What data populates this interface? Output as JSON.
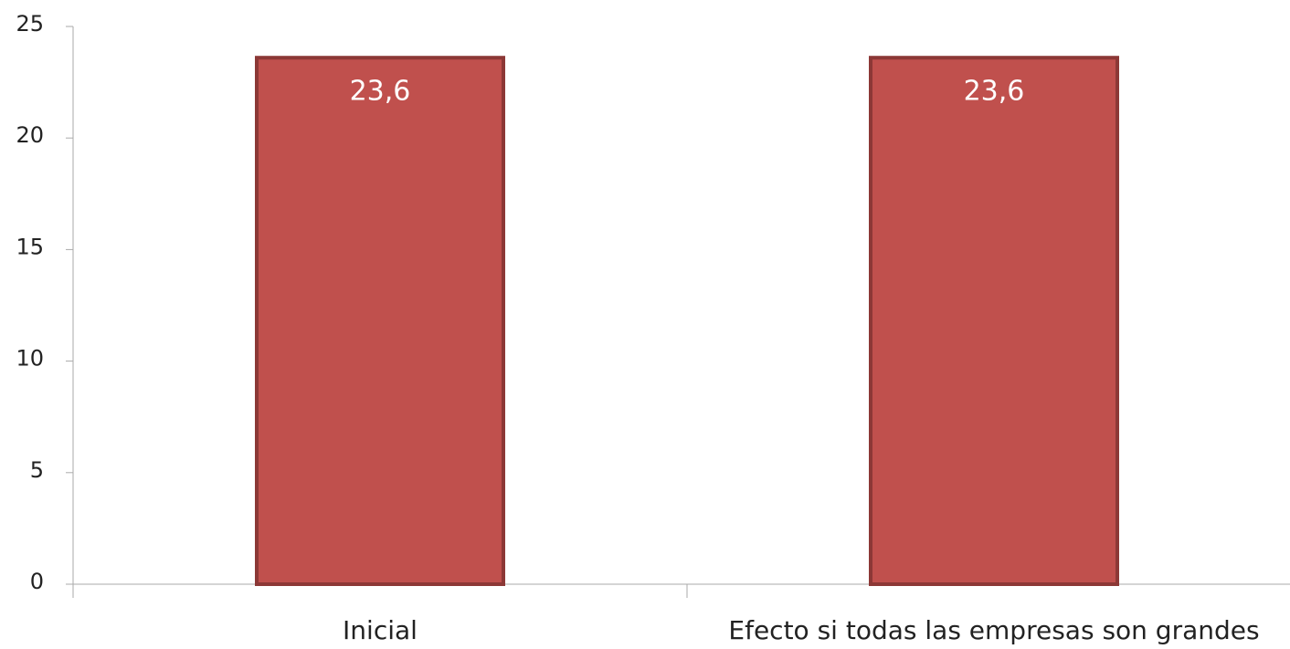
{
  "chart_data": {
    "type": "bar",
    "categories": [
      "Inicial",
      "Efecto si todas las empresas son grandes"
    ],
    "values": [
      23.6,
      23.6
    ],
    "value_labels": [
      "23,6",
      "23,6"
    ],
    "color": "#c0504d",
    "border_color": "#8c3836",
    "label_color": "#ffffff",
    "ylim": [
      0,
      25
    ],
    "yticks": [
      0,
      5,
      10,
      15,
      20,
      25
    ],
    "grid": false
  }
}
